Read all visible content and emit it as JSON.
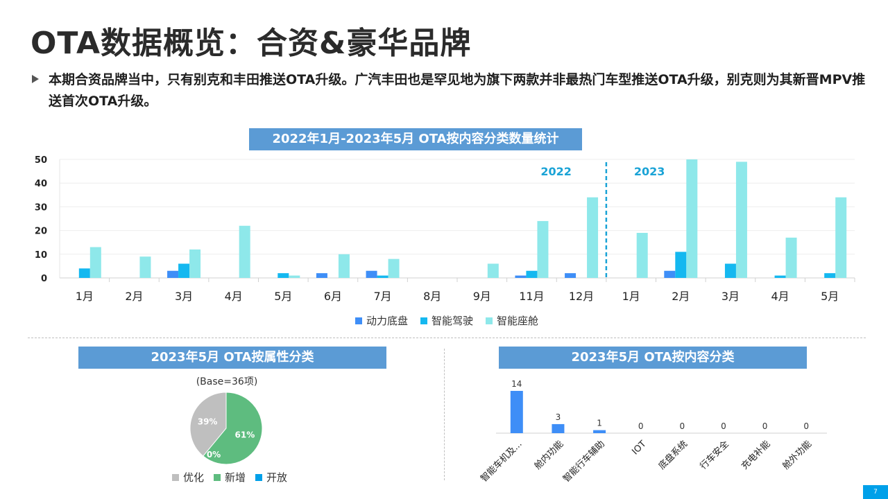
{
  "page": {
    "title": "OTA数据概览：合资&豪华品牌",
    "bullet": "本期合资品牌当中，只有别克和丰田推送OTA升级。广汽丰田也是罕见地为旗下两款并非最热门车型推送OTA升级，别克则为其新晋MPV推送首次OTA升级。",
    "page_number": "7"
  },
  "colors": {
    "banner": "#5b9bd5",
    "powertrain": "#3e8ef7",
    "adas": "#14b8f0",
    "cockpit": "#8ee8ea",
    "optimize": "#bfbfbf",
    "new": "#5ebc7f",
    "open": "#00a0e9",
    "divider": "#1aa3d6"
  },
  "chart_data": [
    {
      "type": "bar",
      "title": "2022年1月-2023年5月 OTA按内容分类数量统计",
      "categories": [
        "1月",
        "2月",
        "3月",
        "4月",
        "5月",
        "6月",
        "7月",
        "8月",
        "9月",
        "11月",
        "12月",
        "1月",
        "2月",
        "3月",
        "4月",
        "5月"
      ],
      "series": [
        {
          "name": "动力底盘",
          "values": [
            0,
            0,
            3,
            0,
            0,
            2,
            3,
            0,
            0,
            1,
            2,
            0,
            3,
            0,
            0,
            0
          ]
        },
        {
          "name": "智能驾驶",
          "values": [
            4,
            0,
            6,
            0,
            2,
            0,
            1,
            0,
            0,
            3,
            0,
            0,
            11,
            6,
            1,
            2
          ]
        },
        {
          "name": "智能座舱",
          "values": [
            13,
            9,
            12,
            22,
            1,
            10,
            8,
            0,
            6,
            24,
            34,
            19,
            50,
            49,
            17,
            34
          ]
        }
      ],
      "ylim": [
        0,
        50
      ],
      "yticks": [
        0,
        10,
        20,
        30,
        40,
        50
      ],
      "grid": true,
      "legend": "bottom",
      "annotations": {
        "year_left": "2022",
        "year_right": "2023"
      }
    },
    {
      "type": "pie",
      "title": "2023年5月 OTA按属性分类",
      "note": "(Base=36项)",
      "slices": [
        {
          "name": "优化",
          "value": 39,
          "label": "39%"
        },
        {
          "name": "新增",
          "value": 61,
          "label": "61%"
        },
        {
          "name": "开放",
          "value": 0,
          "label": "0%"
        }
      ],
      "legend": "bottom"
    },
    {
      "type": "bar",
      "title": "2023年5月 OTA按内容分类",
      "categories": [
        "智能车机及...",
        "舱内功能",
        "智能行车辅助",
        "IOT",
        "底盘系统",
        "行车安全",
        "充电补能",
        "舱外功能"
      ],
      "values": [
        14,
        3,
        1,
        0,
        0,
        0,
        0,
        0
      ],
      "ylim": [
        0,
        14
      ]
    }
  ]
}
